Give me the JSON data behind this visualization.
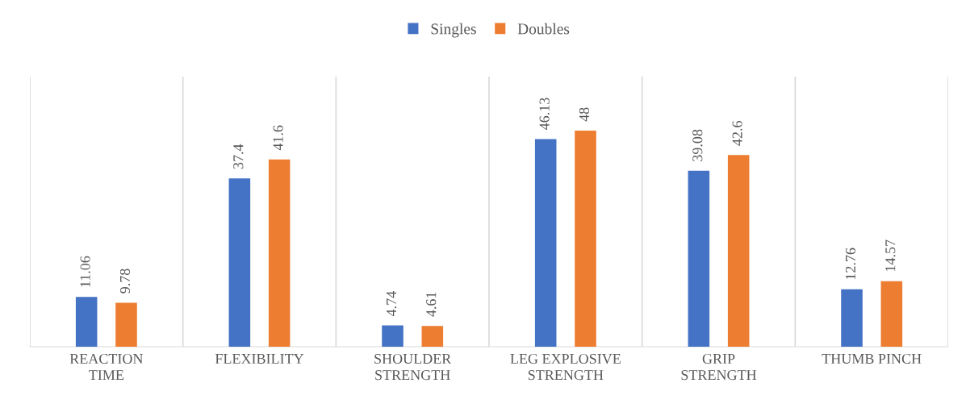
{
  "chart_data": {
    "type": "bar",
    "categories": [
      "REACTION TIME",
      "FLEXIBILITY",
      "SHOULDER STRENGTH",
      "LEG EXPLOSIVE STRENGTH",
      "GRIP STRENGTH",
      "THUMB PINCH"
    ],
    "series": [
      {
        "name": "Singles",
        "color": "#4472c4",
        "values": [
          11.06,
          37.4,
          4.74,
          46.13,
          39.08,
          12.76
        ]
      },
      {
        "name": "Doubles",
        "color": "#ed7d31",
        "values": [
          9.78,
          41.6,
          4.61,
          48,
          42.6,
          14.57
        ]
      }
    ],
    "ylim": [
      0,
      60
    ],
    "tick_labels": "x",
    "data_labels": true,
    "grid": "x",
    "legend": "top"
  }
}
